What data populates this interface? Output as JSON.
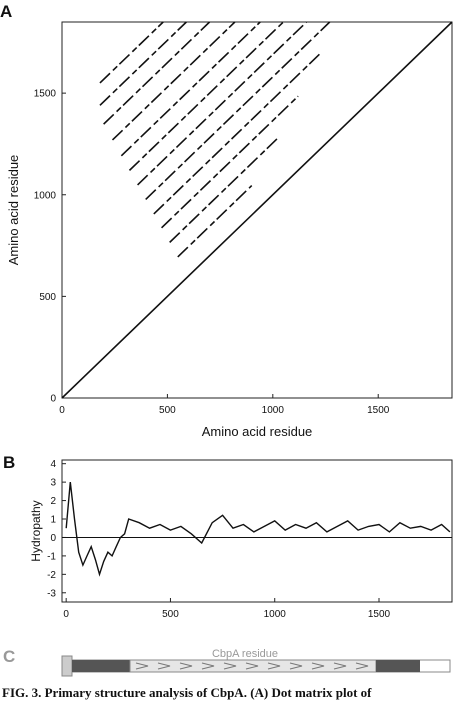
{
  "panel_a": {
    "letter": "A"
  },
  "panel_b": {
    "letter": "B"
  },
  "panel_c": {
    "letter": "C",
    "label": "CbpA residue",
    "domain_colors": {
      "signal": "#cccccc",
      "dark": "#555555",
      "repeat": "#e6e6e6"
    }
  },
  "caption": {
    "text": "FIG. 3.   Primary structure analysis of CbpA. (A) Dot matrix plot of"
  },
  "chart_data": [
    {
      "type": "scatter",
      "subtype": "dot-matrix",
      "xlabel": "Amino acid residue",
      "ylabel": "Amino acid residue",
      "xlim": [
        0,
        1850
      ],
      "ylim": [
        0,
        1850
      ],
      "xticks": [
        0,
        500,
        1000,
        1500
      ],
      "yticks": [
        0,
        500,
        1000,
        1500
      ],
      "grid": false,
      "main_diagonal": [
        [
          0,
          0
        ],
        [
          1850,
          1850
        ]
      ],
      "offset_diagonals": [
        {
          "offset": 145,
          "x": [
            600,
            1700
          ]
        },
        {
          "offset": 255,
          "x": [
            720,
            1600
          ]
        },
        {
          "offset": 365,
          "x": [
            820,
            1500
          ]
        },
        {
          "offset": 470,
          "x": [
            930,
            1400
          ]
        },
        {
          "offset": 580,
          "x": [
            1040,
            1300
          ]
        },
        {
          "offset": 690,
          "x": [
            1150,
            1210
          ]
        },
        {
          "offset": 800,
          "x": [
            1200,
            1060
          ]
        },
        {
          "offset": 910,
          "x": [
            1280,
            990
          ]
        },
        {
          "offset": 1030,
          "x": [
            1300,
            900
          ]
        },
        {
          "offset": 1150,
          "x": [
            1340,
            800
          ]
        },
        {
          "offset": 1260,
          "x": [
            1370,
            700
          ]
        },
        {
          "offset": 1370,
          "x": [
            1410,
            600
          ]
        }
      ]
    },
    {
      "type": "line",
      "xlabel": "",
      "ylabel": "Hydropathy",
      "xlim": [
        -20,
        1850
      ],
      "ylim": [
        -3.5,
        4.2
      ],
      "xticks": [
        0,
        500,
        1000,
        1500
      ],
      "yticks": [
        4,
        3,
        2,
        1,
        0,
        -1,
        -2,
        -3
      ],
      "grid": false,
      "reference_line": 0,
      "series": [
        {
          "x": [
            0,
            20,
            40,
            60,
            80,
            100,
            120,
            140,
            160,
            180,
            200,
            220,
            240,
            260,
            280,
            300,
            350,
            400,
            450,
            500,
            550,
            600,
            650,
            700,
            750,
            800,
            850,
            900,
            950,
            1000,
            1050,
            1100,
            1150,
            1200,
            1250,
            1300,
            1350,
            1400,
            1450,
            1500,
            1550,
            1600,
            1650,
            1700,
            1750,
            1800,
            1840
          ],
          "values": [
            0.5,
            3.0,
            1.0,
            -0.8,
            -1.5,
            -1.0,
            -0.5,
            -1.2,
            -2.0,
            -1.3,
            -0.8,
            -1.0,
            -0.5,
            0.0,
            0.2,
            1.0,
            0.8,
            0.5,
            0.7,
            0.4,
            0.6,
            0.2,
            -0.3,
            0.8,
            1.2,
            0.5,
            0.7,
            0.3,
            0.6,
            0.9,
            0.4,
            0.7,
            0.5,
            0.8,
            0.3,
            0.6,
            0.9,
            0.4,
            0.6,
            0.7,
            0.3,
            0.8,
            0.5,
            0.6,
            0.4,
            0.7,
            0.3
          ]
        }
      ]
    }
  ]
}
